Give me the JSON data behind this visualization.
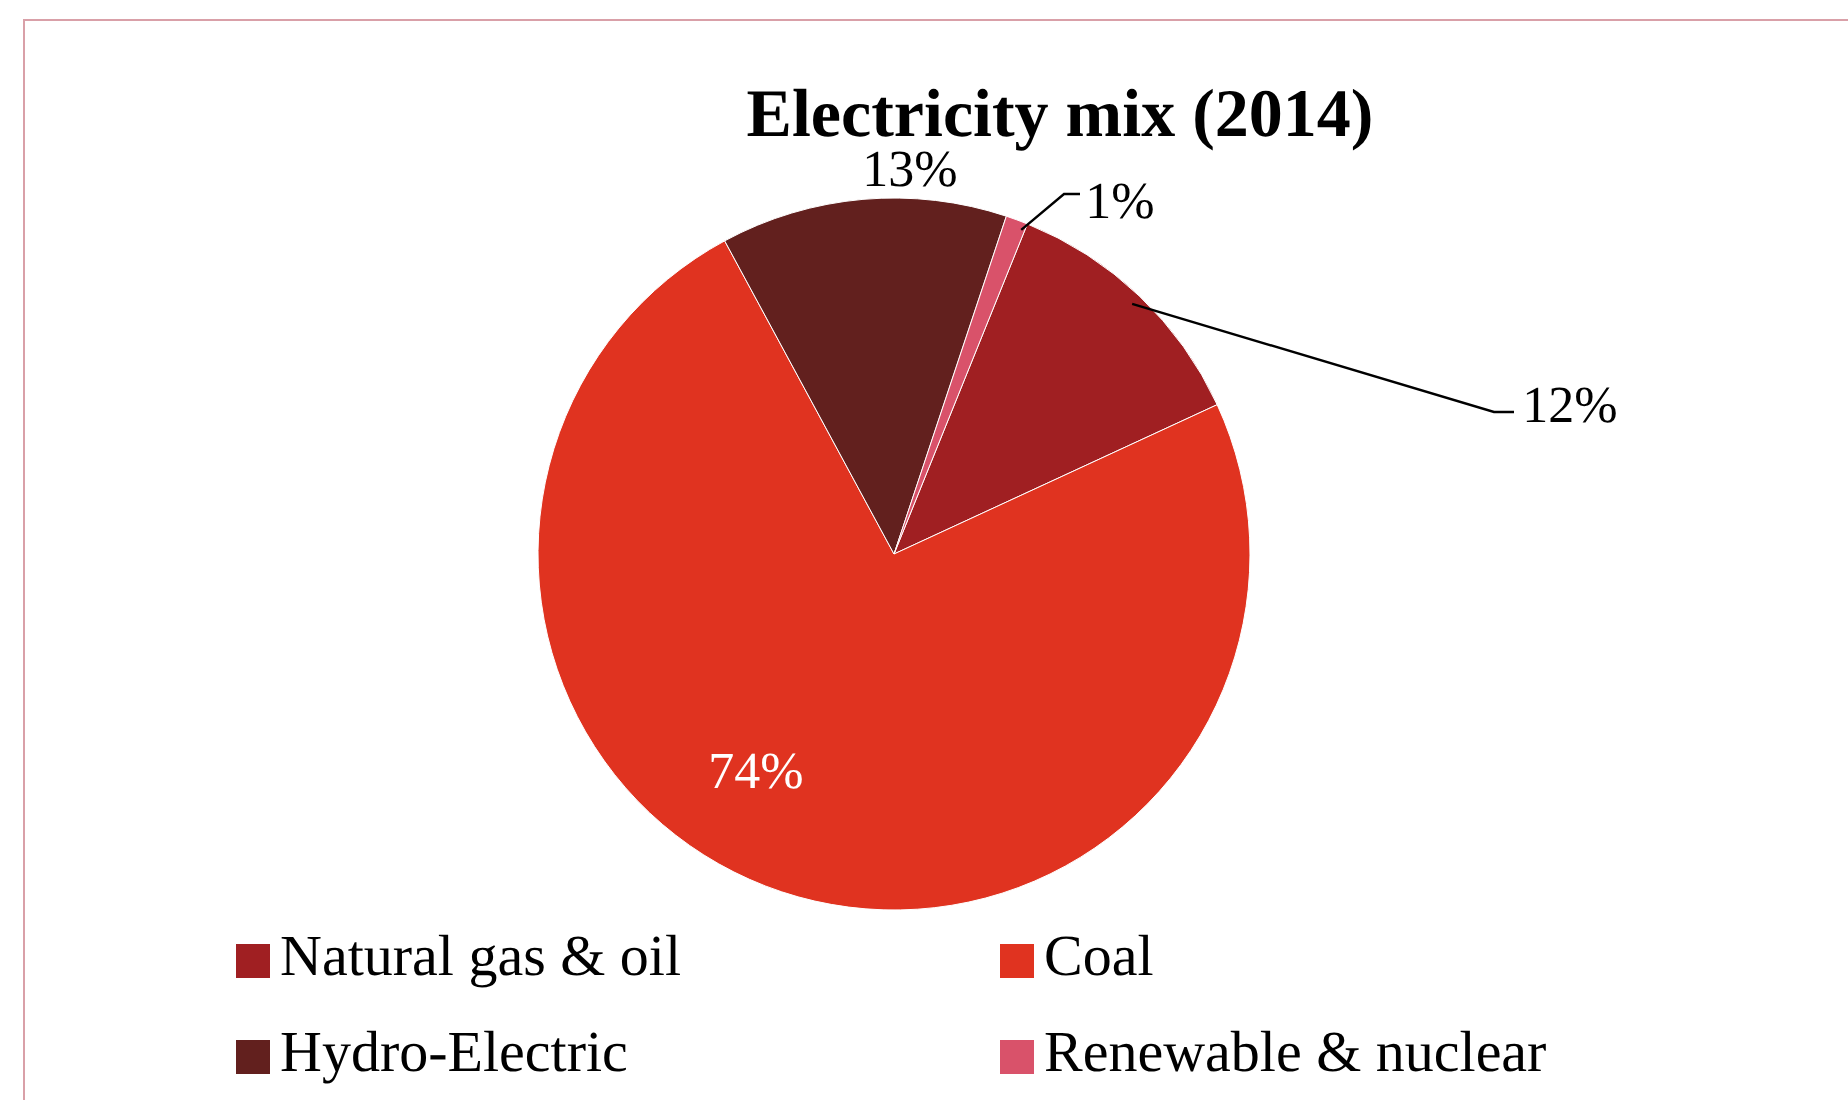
{
  "chart_data": {
    "type": "pie",
    "title": "Electricity mix (2014)",
    "categories": [
      "Natural gas & oil",
      "Coal",
      "Hydro-Electric",
      "Renewable & nuclear"
    ],
    "values": [
      12,
      74,
      13,
      1
    ],
    "colors": [
      "#a01f22",
      "#e03320",
      "#62201e",
      "#d9526a"
    ],
    "value_labels": [
      "12%",
      "74%",
      "13%",
      "1%"
    ],
    "legend": "bottom"
  }
}
